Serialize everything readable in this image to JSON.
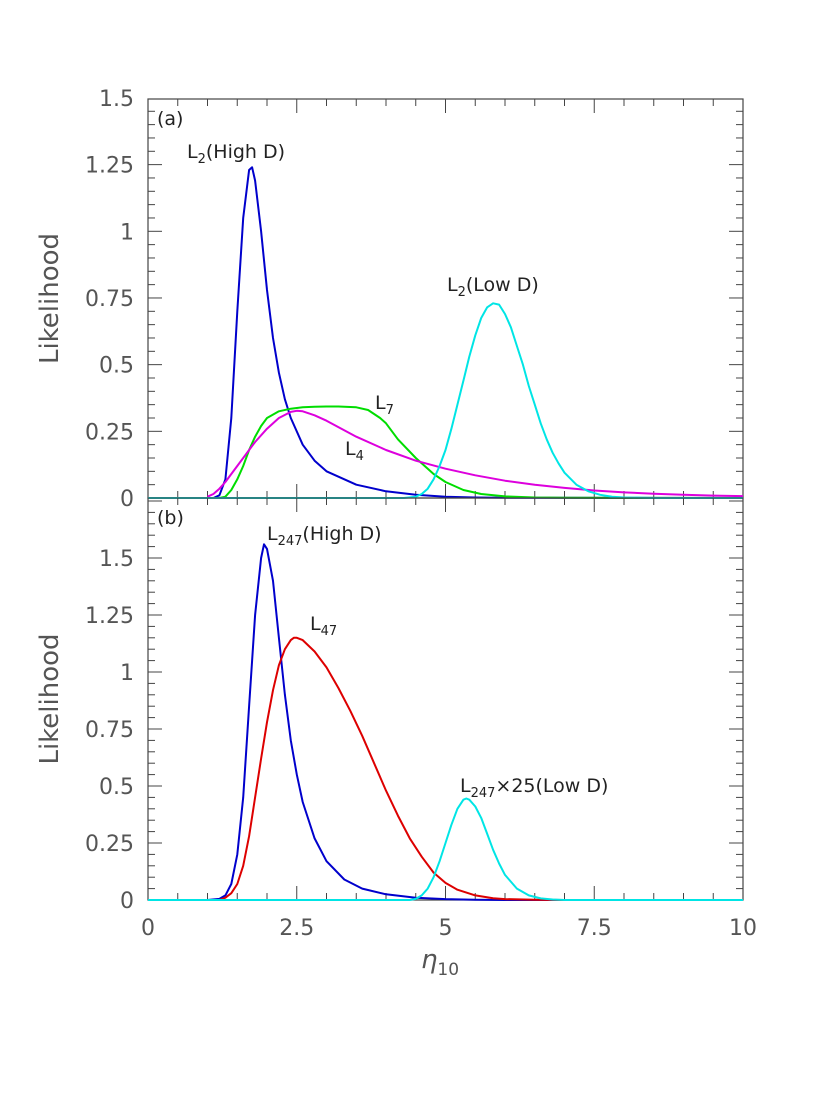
{
  "chart_data": [
    {
      "type": "line",
      "panel_label": "(a)",
      "xlim": [
        0,
        10
      ],
      "ylim": [
        0,
        1.5
      ],
      "x_ticks": [
        "0",
        "2.5",
        "5",
        "7.5",
        "10"
      ],
      "y_ticks": [
        "0",
        "0.25",
        "0.5",
        "0.75",
        "1",
        "1.25",
        "1.5"
      ],
      "ylabel": "Likelihood",
      "grid": false,
      "series": [
        {
          "name_main": "L",
          "name_sub": "2",
          "name_suffix": "(High D)",
          "color": "#0000cc",
          "points": [
            [
              1.0,
              0
            ],
            [
              1.1,
              0
            ],
            [
              1.2,
              0.01
            ],
            [
              1.3,
              0.07
            ],
            [
              1.4,
              0.3
            ],
            [
              1.5,
              0.7
            ],
            [
              1.6,
              1.05
            ],
            [
              1.7,
              1.23
            ],
            [
              1.75,
              1.24
            ],
            [
              1.8,
              1.19
            ],
            [
              1.9,
              1.0
            ],
            [
              2.0,
              0.78
            ],
            [
              2.1,
              0.6
            ],
            [
              2.2,
              0.47
            ],
            [
              2.3,
              0.37
            ],
            [
              2.4,
              0.3
            ],
            [
              2.6,
              0.2
            ],
            [
              2.8,
              0.14
            ],
            [
              3.0,
              0.1
            ],
            [
              3.5,
              0.05
            ],
            [
              4.0,
              0.025
            ],
            [
              4.5,
              0.012
            ],
            [
              5.0,
              0.005
            ],
            [
              5.5,
              0.002
            ],
            [
              6.0,
              0.001
            ],
            [
              10.0,
              0
            ]
          ]
        },
        {
          "name_main": "L",
          "name_sub": "7",
          "name_suffix": "",
          "color": "#00dd00",
          "points": [
            [
              1.2,
              0
            ],
            [
              1.3,
              0.005
            ],
            [
              1.4,
              0.03
            ],
            [
              1.5,
              0.07
            ],
            [
              1.6,
              0.12
            ],
            [
              1.7,
              0.18
            ],
            [
              1.8,
              0.23
            ],
            [
              1.9,
              0.27
            ],
            [
              2.0,
              0.3
            ],
            [
              2.2,
              0.325
            ],
            [
              2.4,
              0.335
            ],
            [
              2.6,
              0.34
            ],
            [
              2.8,
              0.342
            ],
            [
              3.0,
              0.343
            ],
            [
              3.2,
              0.343
            ],
            [
              3.5,
              0.34
            ],
            [
              3.7,
              0.33
            ],
            [
              3.9,
              0.3
            ],
            [
              4.0,
              0.28
            ],
            [
              4.2,
              0.22
            ],
            [
              4.5,
              0.15
            ],
            [
              4.8,
              0.09
            ],
            [
              5.0,
              0.06
            ],
            [
              5.3,
              0.03
            ],
            [
              5.6,
              0.015
            ],
            [
              6.0,
              0.006
            ],
            [
              6.5,
              0.002
            ],
            [
              7.0,
              0.001
            ],
            [
              10.0,
              0
            ]
          ]
        },
        {
          "name_main": "L",
          "name_sub": "4",
          "name_suffix": "",
          "color": "#dd00dd",
          "points": [
            [
              1.0,
              0.005
            ],
            [
              1.1,
              0.015
            ],
            [
              1.2,
              0.035
            ],
            [
              1.3,
              0.06
            ],
            [
              1.4,
              0.09
            ],
            [
              1.6,
              0.15
            ],
            [
              1.8,
              0.21
            ],
            [
              2.0,
              0.26
            ],
            [
              2.2,
              0.3
            ],
            [
              2.4,
              0.323
            ],
            [
              2.5,
              0.327
            ],
            [
              2.6,
              0.325
            ],
            [
              2.8,
              0.31
            ],
            [
              3.0,
              0.29
            ],
            [
              3.5,
              0.23
            ],
            [
              4.0,
              0.18
            ],
            [
              4.5,
              0.14
            ],
            [
              5.0,
              0.11
            ],
            [
              5.5,
              0.085
            ],
            [
              6.0,
              0.065
            ],
            [
              6.5,
              0.05
            ],
            [
              7.0,
              0.038
            ],
            [
              7.5,
              0.028
            ],
            [
              8.0,
              0.021
            ],
            [
              8.5,
              0.016
            ],
            [
              9.0,
              0.012
            ],
            [
              9.5,
              0.009
            ],
            [
              10.0,
              0.007
            ]
          ]
        },
        {
          "name_main": "L",
          "name_sub": "2",
          "name_suffix": "(Low D)",
          "color": "#00e5e5",
          "points": [
            [
              0,
              0
            ],
            [
              4.3,
              0
            ],
            [
              4.5,
              0.005
            ],
            [
              4.6,
              0.015
            ],
            [
              4.7,
              0.035
            ],
            [
              4.8,
              0.07
            ],
            [
              4.9,
              0.12
            ],
            [
              5.0,
              0.18
            ],
            [
              5.1,
              0.26
            ],
            [
              5.2,
              0.35
            ],
            [
              5.3,
              0.44
            ],
            [
              5.4,
              0.53
            ],
            [
              5.5,
              0.61
            ],
            [
              5.6,
              0.675
            ],
            [
              5.7,
              0.715
            ],
            [
              5.8,
              0.73
            ],
            [
              5.9,
              0.725
            ],
            [
              6.0,
              0.69
            ],
            [
              6.1,
              0.64
            ],
            [
              6.2,
              0.57
            ],
            [
              6.3,
              0.5
            ],
            [
              6.4,
              0.42
            ],
            [
              6.5,
              0.35
            ],
            [
              6.6,
              0.28
            ],
            [
              6.7,
              0.22
            ],
            [
              6.8,
              0.17
            ],
            [
              6.9,
              0.13
            ],
            [
              7.0,
              0.095
            ],
            [
              7.2,
              0.05
            ],
            [
              7.4,
              0.025
            ],
            [
              7.6,
              0.012
            ],
            [
              7.8,
              0.005
            ],
            [
              8.0,
              0.002
            ],
            [
              8.5,
              0
            ],
            [
              10.0,
              0
            ]
          ]
        }
      ]
    },
    {
      "type": "line",
      "panel_label": "(b)",
      "xlim": [
        0,
        10
      ],
      "ylim": [
        0,
        1.75
      ],
      "x_ticks": [
        "0",
        "2.5",
        "5",
        "7.5",
        "10"
      ],
      "y_ticks": [
        "0",
        "0.25",
        "0.5",
        "0.75",
        "1",
        "1.25",
        "1.5"
      ],
      "xlabel_main": "η",
      "xlabel_sub": "10",
      "ylabel": "Likelihood",
      "grid": false,
      "series": [
        {
          "name_main": "L",
          "name_sub": "247",
          "name_suffix": "(High D)",
          "color": "#0000cc",
          "points": [
            [
              1.0,
              0
            ],
            [
              1.2,
              0.005
            ],
            [
              1.3,
              0.02
            ],
            [
              1.4,
              0.07
            ],
            [
              1.5,
              0.2
            ],
            [
              1.6,
              0.45
            ],
            [
              1.7,
              0.85
            ],
            [
              1.8,
              1.25
            ],
            [
              1.9,
              1.5
            ],
            [
              1.95,
              1.56
            ],
            [
              2.0,
              1.54
            ],
            [
              2.1,
              1.4
            ],
            [
              2.2,
              1.15
            ],
            [
              2.3,
              0.9
            ],
            [
              2.4,
              0.7
            ],
            [
              2.5,
              0.55
            ],
            [
              2.6,
              0.43
            ],
            [
              2.8,
              0.27
            ],
            [
              3.0,
              0.17
            ],
            [
              3.3,
              0.09
            ],
            [
              3.6,
              0.05
            ],
            [
              4.0,
              0.025
            ],
            [
              4.5,
              0.01
            ],
            [
              5.0,
              0.004
            ],
            [
              5.5,
              0.001
            ],
            [
              6.0,
              0
            ],
            [
              10.0,
              0
            ]
          ]
        },
        {
          "name_main": "L",
          "name_sub": "47",
          "name_suffix": "",
          "color": "#dd0000",
          "points": [
            [
              1.2,
              0
            ],
            [
              1.3,
              0.01
            ],
            [
              1.4,
              0.03
            ],
            [
              1.5,
              0.07
            ],
            [
              1.6,
              0.15
            ],
            [
              1.7,
              0.28
            ],
            [
              1.8,
              0.45
            ],
            [
              1.9,
              0.62
            ],
            [
              2.0,
              0.78
            ],
            [
              2.1,
              0.92
            ],
            [
              2.2,
              1.03
            ],
            [
              2.3,
              1.1
            ],
            [
              2.4,
              1.14
            ],
            [
              2.45,
              1.15
            ],
            [
              2.5,
              1.15
            ],
            [
              2.6,
              1.14
            ],
            [
              2.8,
              1.09
            ],
            [
              3.0,
              1.02
            ],
            [
              3.2,
              0.93
            ],
            [
              3.4,
              0.83
            ],
            [
              3.6,
              0.72
            ],
            [
              3.8,
              0.6
            ],
            [
              4.0,
              0.48
            ],
            [
              4.2,
              0.37
            ],
            [
              4.4,
              0.27
            ],
            [
              4.6,
              0.19
            ],
            [
              4.8,
              0.12
            ],
            [
              5.0,
              0.075
            ],
            [
              5.2,
              0.045
            ],
            [
              5.5,
              0.02
            ],
            [
              5.8,
              0.008
            ],
            [
              6.0,
              0.004
            ],
            [
              6.5,
              0.001
            ],
            [
              7.0,
              0
            ],
            [
              10.0,
              0
            ]
          ]
        },
        {
          "name_main": "L",
          "name_sub": "247",
          "name_suffix": "×25(Low D)",
          "color": "#00e5e5",
          "points": [
            [
              0,
              0
            ],
            [
              4.4,
              0
            ],
            [
              4.5,
              0.005
            ],
            [
              4.6,
              0.02
            ],
            [
              4.7,
              0.05
            ],
            [
              4.8,
              0.1
            ],
            [
              4.9,
              0.17
            ],
            [
              5.0,
              0.25
            ],
            [
              5.1,
              0.33
            ],
            [
              5.2,
              0.4
            ],
            [
              5.3,
              0.44
            ],
            [
              5.35,
              0.445
            ],
            [
              5.4,
              0.44
            ],
            [
              5.5,
              0.41
            ],
            [
              5.6,
              0.36
            ],
            [
              5.7,
              0.29
            ],
            [
              5.8,
              0.22
            ],
            [
              5.9,
              0.16
            ],
            [
              6.0,
              0.11
            ],
            [
              6.2,
              0.05
            ],
            [
              6.4,
              0.02
            ],
            [
              6.6,
              0.007
            ],
            [
              6.8,
              0.002
            ],
            [
              7.0,
              0
            ],
            [
              10.0,
              0
            ]
          ]
        }
      ]
    }
  ]
}
